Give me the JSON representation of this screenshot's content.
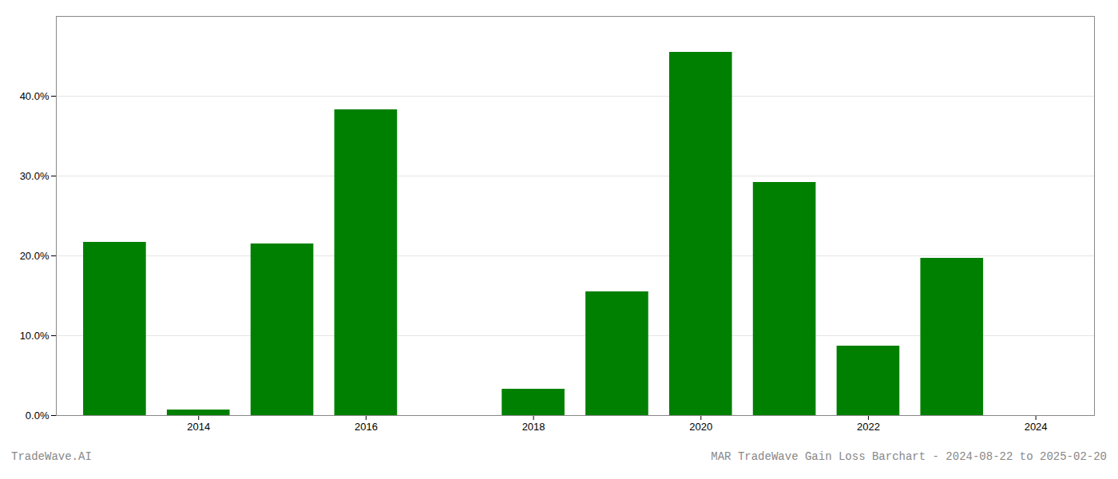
{
  "chart_data": {
    "type": "bar",
    "x": [
      2013,
      2014,
      2015,
      2016,
      2017,
      2018,
      2019,
      2020,
      2021,
      2022,
      2023,
      2024
    ],
    "values": [
      0.217,
      0.007,
      0.215,
      0.383,
      0.0,
      0.033,
      0.155,
      0.455,
      0.292,
      0.087,
      0.197,
      0.0
    ],
    "color": "#008000",
    "xlim": [
      2012.3,
      2024.7
    ],
    "xticks": [
      2014,
      2016,
      2018,
      2020,
      2022,
      2024
    ],
    "ylim": [
      0,
      0.5
    ],
    "yticks": [
      {
        "value": 0.0,
        "label": "0.0%"
      },
      {
        "value": 0.1,
        "label": "10.0%"
      },
      {
        "value": 0.2,
        "label": "20.0%"
      },
      {
        "value": 0.3,
        "label": "30.0%"
      },
      {
        "value": 0.4,
        "label": "40.0%"
      }
    ],
    "grid": true,
    "annotations": [
      "TradeWave.AI",
      "MAR TradeWave Gain Loss Barchart - 2024-08-22 to 2025-02-20"
    ]
  }
}
